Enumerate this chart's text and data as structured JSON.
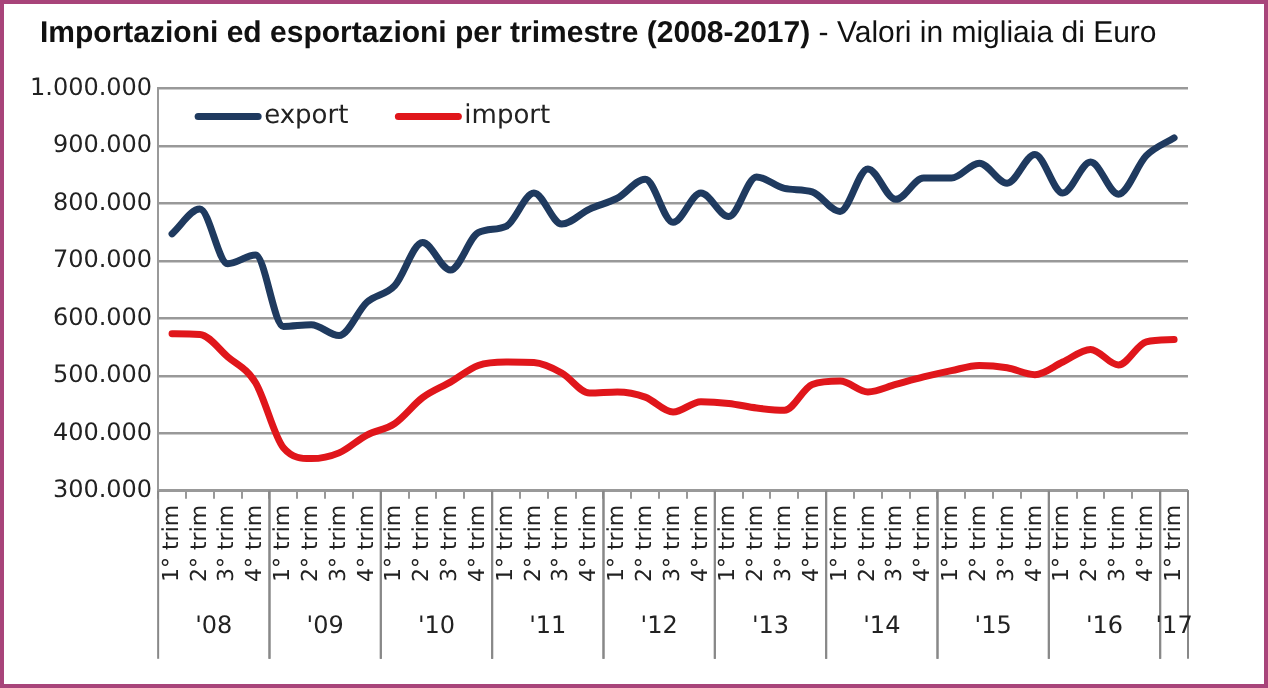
{
  "chart_data": {
    "type": "line",
    "title": "Importazioni ed esportazioni per trimestre (2008-2017) - Valori in migliaia di Euro",
    "categories": [
      "1° trim",
      "2° trim",
      "3° trim",
      "4° trim",
      "1° trim",
      "2° trim",
      "3° trim",
      "4° trim",
      "1° trim",
      "2° trim",
      "3° trim",
      "4° trim",
      "1° trim",
      "2° trim",
      "3° trim",
      "4° trim",
      "1° trim",
      "2° trim",
      "3° trim",
      "4° trim",
      "1° trim",
      "2° trim",
      "3° trim",
      "4° trim",
      "1° trim",
      "2° trim",
      "3° trim",
      "4° trim",
      "1° trim",
      "2° trim",
      "3° trim",
      "4° trim",
      "1° trim",
      "2° trim",
      "3° trim",
      "4° trim",
      "1° trim"
    ],
    "series": [
      {
        "name": "export",
        "color": "#1f3a5f",
        "values": [
          747000,
          790000,
          695000,
          710000,
          586000,
          589000,
          570000,
          628000,
          657000,
          732000,
          684000,
          749000,
          760000,
          818000,
          764000,
          790000,
          809000,
          842000,
          767000,
          818000,
          777000,
          846000,
          826000,
          820000,
          786000,
          860000,
          807000,
          844000,
          844000,
          870000,
          835000,
          885000,
          818000,
          872000,
          816000,
          883000,
          914000
        ]
      },
      {
        "name": "import",
        "color": "#e0161b",
        "values": [
          573000,
          572000,
          533000,
          488000,
          375000,
          356000,
          366000,
          397000,
          417000,
          462000,
          489000,
          518000,
          524000,
          523000,
          505000,
          470000,
          472000,
          463000,
          437000,
          455000,
          452000,
          444000,
          440000,
          485000,
          491000,
          472000,
          485000,
          498000,
          509000,
          518000,
          514000,
          502000,
          524000,
          546000,
          519000,
          559000,
          563000
        ]
      }
    ],
    "ylim": [
      300000,
      1000000
    ],
    "yticks": [
      {
        "value": 300000,
        "label": "300.000"
      },
      {
        "value": 400000,
        "label": "400.000"
      },
      {
        "value": 500000,
        "label": "500.000"
      },
      {
        "value": 600000,
        "label": "600.000"
      },
      {
        "value": 700000,
        "label": "700.000"
      },
      {
        "value": 800000,
        "label": "800.000"
      },
      {
        "value": 900000,
        "label": "900.000"
      },
      {
        "value": 1000000,
        "label": "1.000.000"
      }
    ],
    "annotations": [
      "'08",
      "'09",
      "'10",
      "'11",
      "'12",
      "'13",
      "'14",
      "'15",
      "'16",
      "'17"
    ],
    "grid": "y",
    "legend": "top left",
    "marker": "none",
    "line_style": "solid"
  }
}
